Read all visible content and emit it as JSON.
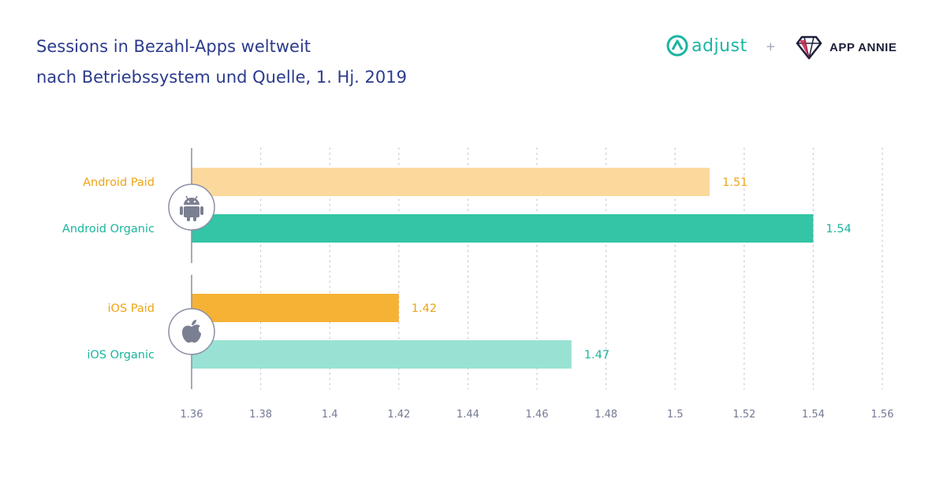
{
  "header": {
    "title_line1": "Sessions in Bezahl-Apps weltweit",
    "title_line2": "nach Betriebssystem und Quelle, 1. Hj. 2019"
  },
  "logos": {
    "adjust": "adjust",
    "plus": "+",
    "app_annie": "APP ANNIE"
  },
  "colors": {
    "android_paid": "#fbd99c",
    "android_organic": "#33c5a6",
    "ios_paid": "#f5b234",
    "ios_organic": "#99e2d3",
    "paid_label": "#eea417",
    "organic_label": "#1bb59d",
    "title": "#2b3b8c"
  },
  "icons": {
    "android": "android-icon",
    "apple": "apple-icon"
  },
  "chart_data": {
    "type": "bar",
    "orientation": "horizontal",
    "categories": [
      "Android Paid",
      "Android Organic",
      "iOS Paid",
      "iOS Organic"
    ],
    "values": [
      1.51,
      1.54,
      1.42,
      1.47
    ],
    "value_labels": [
      "1.51",
      "1.54",
      "1.42",
      "1.47"
    ],
    "groups": [
      {
        "icon": "android-icon",
        "categories": [
          "Android Paid",
          "Android Organic"
        ]
      },
      {
        "icon": "apple-icon",
        "categories": [
          "iOS Paid",
          "iOS Organic"
        ]
      }
    ],
    "xlim": [
      1.36,
      1.56
    ],
    "xticks": [
      1.36,
      1.38,
      1.4,
      1.42,
      1.44,
      1.46,
      1.48,
      1.5,
      1.52,
      1.54,
      1.56
    ],
    "xtick_labels": [
      "1.36",
      "1.38",
      "1.4",
      "1.42",
      "1.44",
      "1.46",
      "1.48",
      "1.5",
      "1.52",
      "1.54",
      "1.56"
    ],
    "grid": "vertical-dotted",
    "title": "Sessions in Bezahl-Apps weltweit nach Betriebssystem und Quelle, 1. Hj. 2019"
  }
}
